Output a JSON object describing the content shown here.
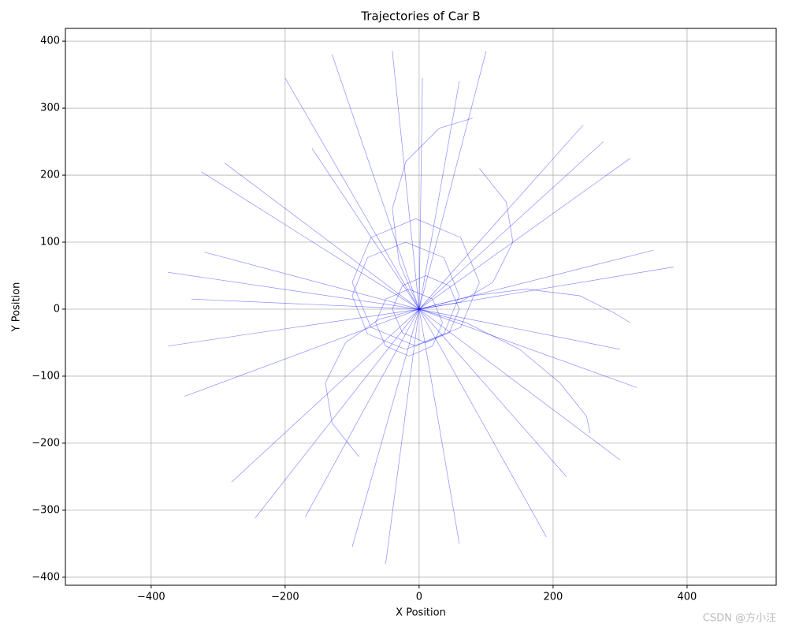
{
  "chart_data": {
    "type": "line",
    "title": "Trajectories of Car B",
    "x_label": "X Position",
    "y_label": "Y Position",
    "watermark": "CSDN @方小汪",
    "xlim": [
      -528,
      533
    ],
    "ylim": [
      -412,
      419
    ],
    "grid": true,
    "xticks": [
      {
        "value": -400,
        "label": "−400"
      },
      {
        "value": -200,
        "label": "−200"
      },
      0,
      200,
      400
    ],
    "yticks": [
      {
        "value": -400,
        "label": "−400"
      },
      {
        "value": -300,
        "label": "−300"
      },
      {
        "value": -200,
        "label": "−200"
      },
      {
        "value": -100,
        "label": "−100"
      },
      0,
      100,
      200,
      300,
      400
    ],
    "series": [
      {
        "color": "#0000ff",
        "x": [
          0,
          -200
        ],
        "values": [
          0,
          345
        ]
      },
      {
        "color": "#0000ff",
        "x": [
          0,
          100
        ],
        "values": [
          0,
          385
        ]
      },
      {
        "color": "#0000ff",
        "x": [
          0,
          -130
        ],
        "values": [
          0,
          380
        ]
      },
      {
        "color": "#0000ff",
        "x": [
          0,
          245
        ],
        "values": [
          0,
          275
        ]
      },
      {
        "color": "#0000ff",
        "x": [
          0,
          315
        ],
        "values": [
          0,
          225
        ]
      },
      {
        "color": "#0000ff",
        "x": [
          0,
          380
        ],
        "values": [
          0,
          63
        ]
      },
      {
        "color": "#0000ff",
        "x": [
          0,
          350
        ],
        "values": [
          0,
          88
        ]
      },
      {
        "color": "#0000ff",
        "x": [
          0,
          -375
        ],
        "values": [
          0,
          55
        ]
      },
      {
        "color": "#0000ff",
        "x": [
          0,
          -375
        ],
        "values": [
          0,
          -55
        ]
      },
      {
        "color": "#0000ff",
        "x": [
          0,
          -350
        ],
        "values": [
          0,
          -130
        ]
      },
      {
        "color": "#0000ff",
        "x": [
          0,
          -280
        ],
        "values": [
          0,
          -258
        ]
      },
      {
        "color": "#0000ff",
        "x": [
          0,
          -245
        ],
        "values": [
          0,
          -312
        ]
      },
      {
        "color": "#0000ff",
        "x": [
          0,
          -100
        ],
        "values": [
          0,
          -355
        ]
      },
      {
        "color": "#0000ff",
        "x": [
          0,
          -50
        ],
        "values": [
          0,
          -380
        ]
      },
      {
        "color": "#0000ff",
        "x": [
          0,
          60
        ],
        "values": [
          0,
          -350
        ]
      },
      {
        "color": "#0000ff",
        "x": [
          0,
          190
        ],
        "values": [
          0,
          -340
        ]
      },
      {
        "color": "#0000ff",
        "x": [
          0,
          300
        ],
        "values": [
          0,
          -225
        ]
      },
      {
        "color": "#0000ff",
        "x": [
          0,
          325
        ],
        "values": [
          0,
          -117
        ]
      },
      {
        "color": "#0000ff",
        "x": [
          0,
          -325
        ],
        "values": [
          0,
          205
        ]
      },
      {
        "color": "#0000ff",
        "x": [
          0,
          -290
        ],
        "values": [
          0,
          218
        ]
      },
      {
        "color": "#0000ff",
        "x": [
          0,
          -340
        ],
        "values": [
          0,
          15
        ]
      },
      {
        "color": "#0000ff",
        "x": [
          0,
          275
        ],
        "values": [
          0,
          250
        ]
      },
      {
        "color": "#0000ff",
        "x": [
          0,
          220
        ],
        "values": [
          0,
          -250
        ]
      },
      {
        "color": "#0000ff",
        "x": [
          0,
          -170
        ],
        "values": [
          0,
          -310
        ]
      },
      {
        "color": "#0000ff",
        "x": [
          0,
          -40
        ],
        "values": [
          0,
          385
        ]
      },
      {
        "color": "#0000ff",
        "x": [
          0,
          5
        ],
        "values": [
          0,
          345
        ]
      },
      {
        "color": "#0000ff",
        "x": [
          0,
          -160
        ],
        "values": [
          0,
          240
        ]
      },
      {
        "color": "#0000ff",
        "x": [
          0,
          -320
        ],
        "values": [
          0,
          85
        ]
      },
      {
        "color": "#0000ff",
        "x": [
          0,
          300
        ],
        "values": [
          0,
          -60
        ]
      },
      {
        "color": "#0000ff",
        "x": [
          0,
          60
        ],
        "values": [
          0,
          340
        ]
      },
      {
        "color": "#0000ff",
        "x": [
          0,
          60,
          110,
          140,
          130,
          90
        ],
        "values": [
          0,
          10,
          40,
          100,
          160,
          210
        ]
      },
      {
        "color": "#0000ff",
        "x": [
          60,
          45,
          10,
          -25,
          -40,
          -25,
          10,
          45,
          60
        ],
        "values": [
          0,
          35,
          50,
          35,
          0,
          -35,
          -50,
          -35,
          0
        ]
      },
      {
        "color": "#0000ff",
        "x": [
          60,
          37,
          -20,
          -77,
          -100,
          -77,
          -20,
          37,
          60
        ],
        "values": [
          20,
          77,
          100,
          77,
          20,
          -37,
          -60,
          -37,
          20
        ]
      },
      {
        "color": "#0000ff",
        "x": [
          0,
          70,
          150,
          210,
          250,
          255
        ],
        "values": [
          0,
          -20,
          -60,
          -110,
          -160,
          -185
        ]
      },
      {
        "color": "#0000ff",
        "x": [
          0,
          -60,
          -110,
          -140,
          -130,
          -90
        ],
        "values": [
          0,
          -15,
          -50,
          -110,
          -170,
          -220
        ]
      },
      {
        "color": "#0000ff",
        "x": [
          0,
          80,
          160,
          240,
          290,
          315
        ],
        "values": [
          0,
          20,
          30,
          20,
          -5,
          -20
        ]
      },
      {
        "color": "#0000ff",
        "x": [
          0,
          -30,
          -40,
          -20,
          30,
          80
        ],
        "values": [
          0,
          70,
          150,
          220,
          270,
          285
        ]
      },
      {
        "color": "#0000ff",
        "x": [
          35,
          20,
          -15,
          -50,
          -65,
          -50,
          -15,
          20,
          35
        ],
        "values": [
          -20,
          15,
          30,
          15,
          -20,
          -55,
          -70,
          -55,
          -20
        ]
      },
      {
        "color": "#0000ff",
        "x": [
          90,
          62,
          -5,
          -72,
          -100,
          -72,
          -5,
          62,
          90
        ],
        "values": [
          40,
          107,
          135,
          107,
          40,
          -27,
          -55,
          -27,
          40
        ]
      }
    ]
  }
}
